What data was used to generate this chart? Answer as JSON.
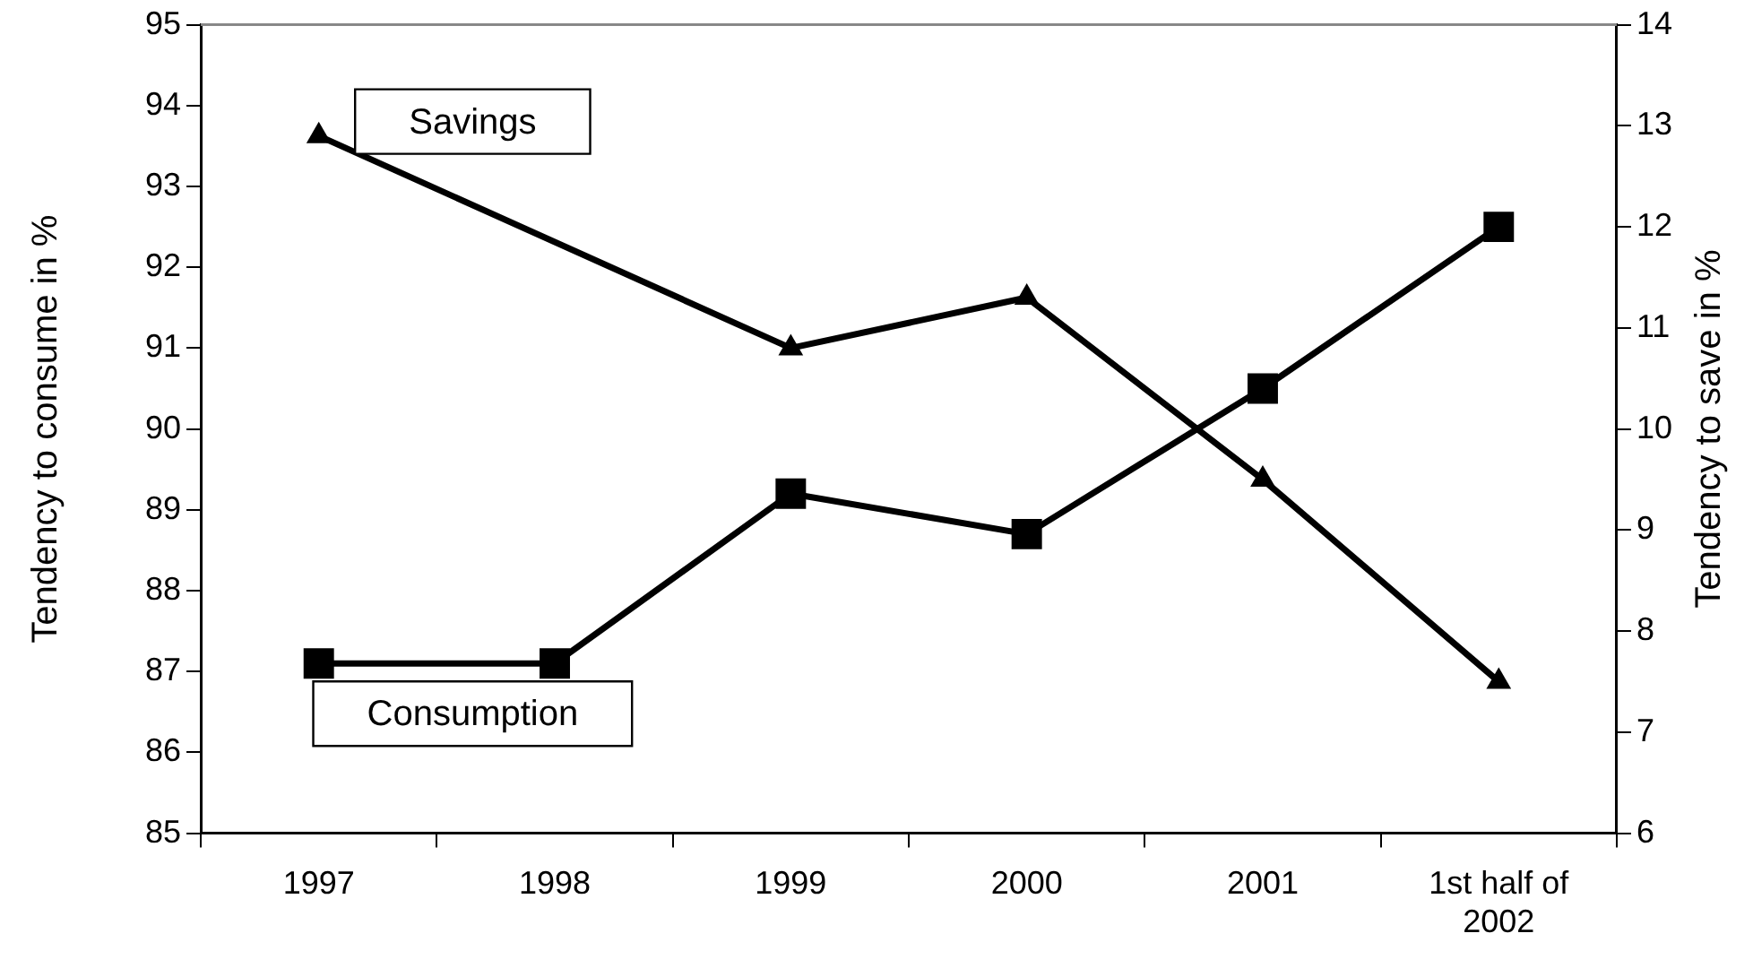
{
  "chart_data": {
    "type": "line",
    "ylabel": "Tendency to consume in %",
    "y2label": "Tendency to save in %",
    "categories": [
      "1997",
      "1998",
      "1999",
      "2000",
      "2001",
      "1st half of 2002"
    ],
    "series": [
      {
        "name": "Consumption",
        "color": "#000000",
        "marker": "square",
        "values": [
          87.1,
          87.1,
          89.2,
          88.7,
          90.5,
          92.5
        ]
      },
      {
        "name": "Savings",
        "color": "#000000",
        "marker": "triangle",
        "axis": "y2",
        "values": [
          12.9,
          null,
          10.8,
          11.3,
          9.5,
          7.5
        ]
      }
    ],
    "ylim": [
      85,
      95
    ],
    "yticks": [
      85,
      86,
      87,
      88,
      89,
      90,
      91,
      92,
      93,
      94,
      95
    ],
    "y2lim": [
      6,
      14
    ],
    "y2ticks": [
      6,
      7,
      8,
      9,
      10,
      11,
      12,
      13,
      14
    ],
    "grid": false,
    "legend": false,
    "line_style": "solid"
  }
}
